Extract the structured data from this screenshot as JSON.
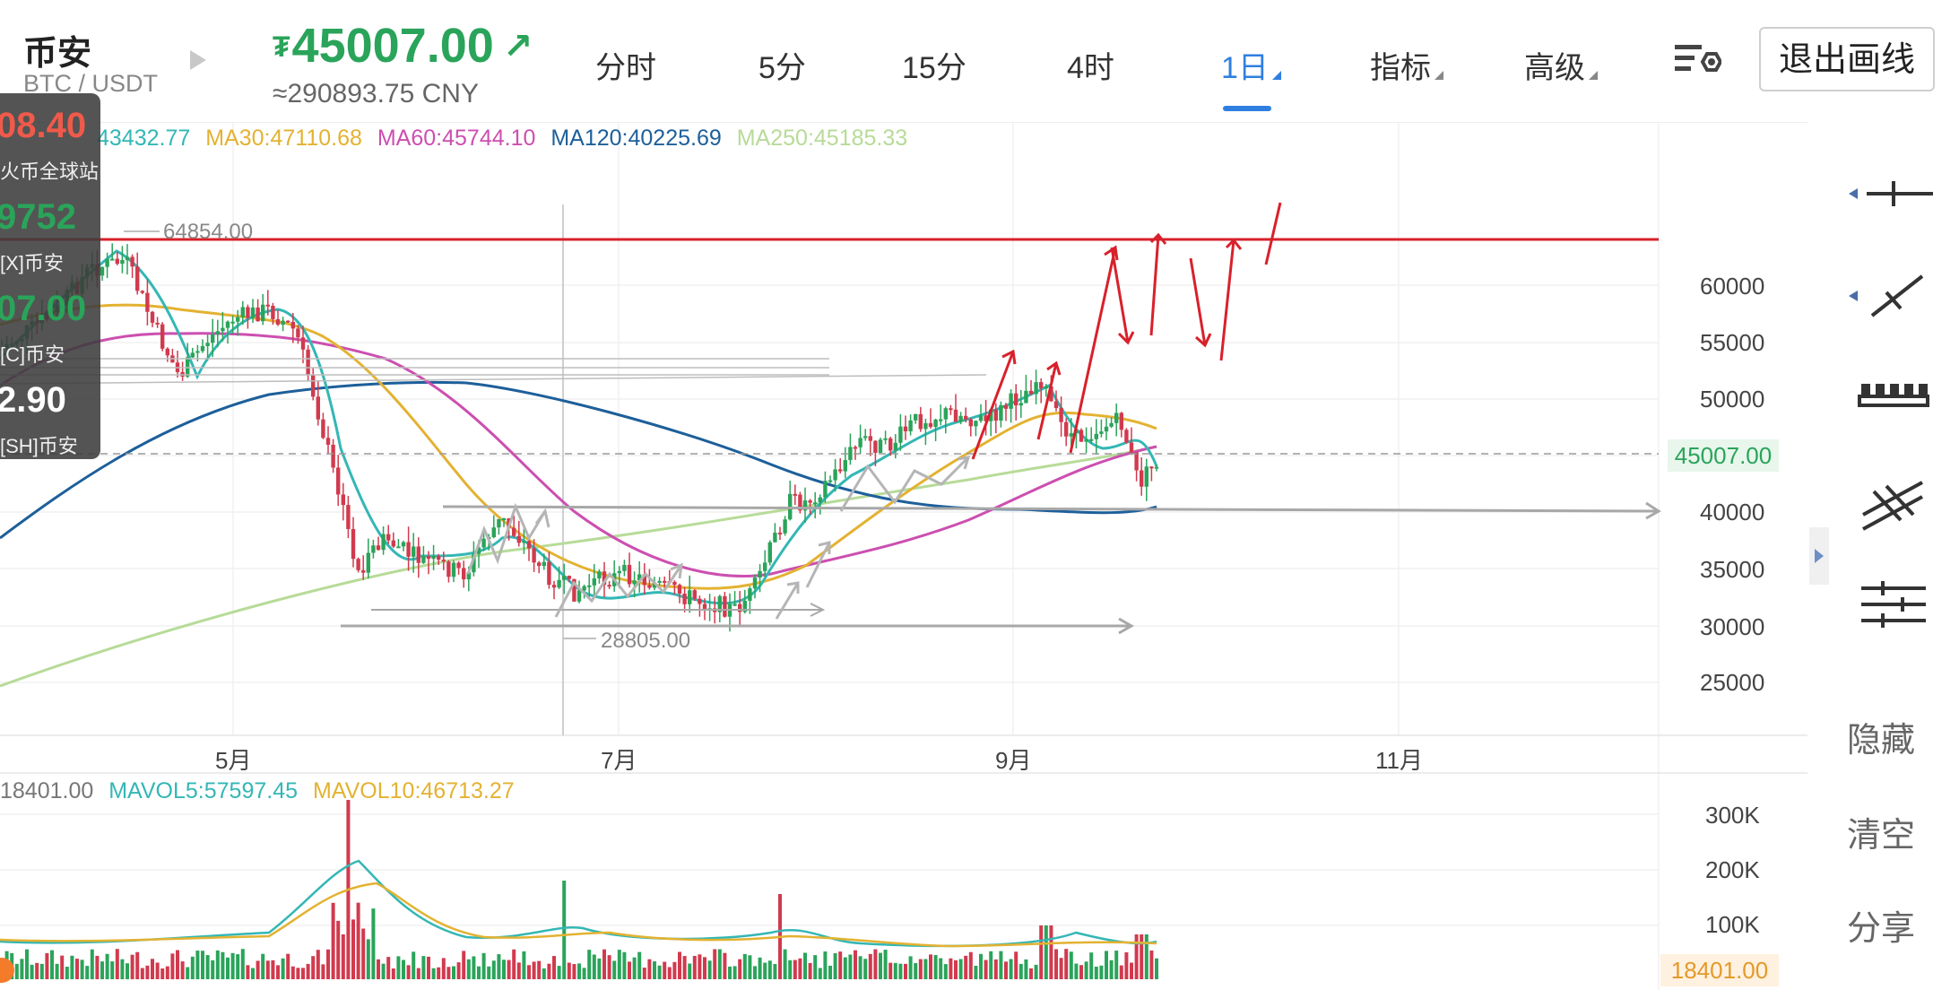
{
  "header": {
    "exchange": "币安",
    "pair": "BTC / USDT",
    "currency_symbol": "₮",
    "price": "45007.00",
    "price_arrow": "↗",
    "cny": "≈290893.75 CNY",
    "tabs": [
      "分时",
      "5分",
      "15分",
      "4时",
      "1日",
      "指标",
      "高级"
    ],
    "active_tab": "1日",
    "exit_button": "退出画线"
  },
  "ma_legend": {
    "ma5_partial": "43432.77",
    "ma30": "MA30:47110.68",
    "ma60": "MA60:45744.10",
    "ma120": "MA120:40225.69",
    "ma250": "MA250:45185.33"
  },
  "overlay": {
    "row1": "08.40",
    "row2": "火币全球站",
    "row3": "9752",
    "row4": "[X]币安",
    "row5": "07.00",
    "row6": "[C]币安",
    "row7": "2.90",
    "row8": "[SH]币安"
  },
  "chart_labels": {
    "high": "64854.00",
    "low": "28805.00",
    "current_price": "45007.00"
  },
  "y_axis": [
    "60000",
    "55000",
    "50000",
    "45000",
    "40000",
    "35000",
    "30000",
    "25000"
  ],
  "x_axis": [
    "5月",
    "7月",
    "9月",
    "11月"
  ],
  "vol_legend": {
    "vol": "18401.00",
    "mavol5": "MAVOL5:57597.45",
    "mavol10": "MAVOL10:46713.27"
  },
  "vol_axis": [
    "300K",
    "200K",
    "100K"
  ],
  "vol_current": "18401.00",
  "right_toolbar": {
    "tools": [
      "horizontal-line-tool-icon",
      "trend-line-tool-icon",
      "ruler-tool-icon",
      "parallel-channel-tool-icon",
      "fib-lines-tool-icon"
    ],
    "hide": "隐藏",
    "clear": "清空",
    "share": "分享"
  },
  "colors": {
    "up": "#2aa45a",
    "down": "#d13a4e",
    "ma5": "#33b7b5",
    "ma30": "#e3b232",
    "ma60": "#cc4fb0",
    "ma120": "#1d5f9a",
    "ma250": "#b7db98",
    "drawing_red": "#d8212b",
    "drawing_gray": "#a8a8a8",
    "accent": "#2f7fe0"
  },
  "chart_data": {
    "type": "candlestick",
    "timeframe": "1日",
    "y_range": [
      22000,
      70000
    ],
    "x_ticks": [
      "5月",
      "7月",
      "9月",
      "11月"
    ],
    "series": [
      {
        "name": "MA30",
        "last": 47110.68
      },
      {
        "name": "MA60",
        "last": 45744.1
      },
      {
        "name": "MA120",
        "last": 40225.69
      },
      {
        "name": "MA250",
        "last": 45185.33
      }
    ],
    "annotated_high": 64854.0,
    "annotated_low": 28805.0,
    "last_price": 45007.0,
    "volume": {
      "last": 18401.0,
      "mavol5": 57597.45,
      "mavol10": 46713.27,
      "ticks": [
        "300K",
        "200K",
        "100K"
      ]
    }
  }
}
